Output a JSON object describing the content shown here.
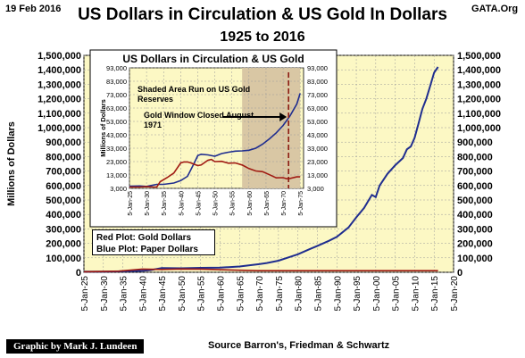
{
  "header": {
    "date": "19 Feb 2016",
    "site": "GATA.Org",
    "title": "US Dollars in Circulation & US Gold In Dollars",
    "subtitle": "1925 to 2016"
  },
  "footer": {
    "credit": "Graphic by Mark J. Lundeen",
    "source": "Source Barron's, Friedman  & Schwartz"
  },
  "legend": {
    "red": "Red Plot: Gold Dollars",
    "blue": "Blue Plot: Paper Dollars"
  },
  "colors": {
    "plot_bg": "#fcf8c4",
    "paper": "#1f2d8f",
    "gold": "#a01a12",
    "shade": "#d9c7a4"
  },
  "chart_data": [
    {
      "type": "line",
      "title": "US Dollars in Circulation & US Gold In Dollars",
      "subtitle": "1925 to 2016",
      "xlabel": "",
      "ylabel": "Millions of Dollars",
      "xlim": [
        1925,
        2020
      ],
      "ylim": [
        0,
        1500000
      ],
      "grid": true,
      "x_ticks": [
        "5-Jan-25",
        "5-Jan-30",
        "5-Jan-35",
        "5-Jan-40",
        "5-Jan-45",
        "5-Jan-50",
        "5-Jan-55",
        "5-Jan-60",
        "5-Jan-65",
        "5-Jan-70",
        "5-Jan-75",
        "5-Jan-80",
        "5-Jan-85",
        "5-Jan-90",
        "5-Jan-95",
        "5-Jan-00",
        "5-Jan-05",
        "5-Jan-10",
        "5-Jan-15",
        "5-Jan-20"
      ],
      "y_ticks": [
        "0",
        "100,000",
        "200,000",
        "300,000",
        "400,000",
        "500,000",
        "600,000",
        "700,000",
        "800,000",
        "900,000",
        "1,000,000",
        "1,100,000",
        "1,200,000",
        "1,300,000",
        "1,400,000",
        "1,500,000"
      ],
      "y_ticks_right": [
        "0",
        "100,000",
        "200,000",
        "300,000",
        "400,000",
        "500,000",
        "600,000",
        "700,000",
        "800,000",
        "900,000",
        "1,000,000",
        "1,100,000",
        "1,200,000",
        "1,300,000",
        "1,400,000",
        "1,500,000"
      ],
      "series": [
        {
          "name": "Blue Plot: Paper Dollars",
          "color": "#1f2d8f",
          "x": [
            1925,
            1930,
            1935,
            1940,
            1942,
            1945,
            1950,
            1955,
            1960,
            1965,
            1970,
            1972,
            1975,
            1978,
            1980,
            1983,
            1985,
            1988,
            1990,
            1993,
            1995,
            1997,
            1999,
            2000,
            2001,
            2003,
            2005,
            2007,
            2008,
            2009,
            2010,
            2011,
            2012,
            2013,
            2014,
            2015,
            2016
          ],
          "y": [
            5000,
            5000,
            7000,
            10000,
            15000,
            29000,
            28000,
            31000,
            32000,
            40000,
            56000,
            64000,
            80000,
            107000,
            125000,
            160000,
            183000,
            218000,
            245000,
            310000,
            380000,
            445000,
            535000,
            520000,
            600000,
            680000,
            740000,
            790000,
            850000,
            870000,
            930000,
            1030000,
            1130000,
            1200000,
            1290000,
            1380000,
            1420000
          ]
        },
        {
          "name": "Red Plot: Gold Dollars",
          "color": "#a01a12",
          "x": [
            1925,
            1934,
            1940,
            1945,
            1950,
            1955,
            1960,
            1965,
            1970,
            1975,
            1980,
            1990,
            2000,
            2010,
            2016
          ],
          "y": [
            4000,
            8000,
            22000,
            20000,
            23000,
            22000,
            18000,
            14000,
            11000,
            11000,
            11000,
            11000,
            11000,
            11000,
            11000
          ]
        }
      ]
    },
    {
      "type": "line",
      "title": "US Dollars in Circulation & US Gold",
      "xlabel": "",
      "ylabel": "Millions of Dollars",
      "xlim": [
        1925,
        1976
      ],
      "ylim": [
        3000,
        93000
      ],
      "grid": true,
      "annotations": [
        "Shaded Area Run on US Gold Reserves",
        "Gold Window Closed August 1971"
      ],
      "shaded_range": [
        1958,
        1975
      ],
      "marker_x": 1971.6,
      "x_ticks": [
        "5-Jan-25",
        "5-Jan-30",
        "5-Jan-35",
        "5-Jan-40",
        "5-Jan-45",
        "5-Jan-50",
        "5-Jan-55",
        "5-Jan-60",
        "5-Jan-65",
        "5-Jan-70",
        "5-Jan-75"
      ],
      "y_ticks": [
        "3,000",
        "13,000",
        "23,000",
        "33,000",
        "43,000",
        "53,000",
        "63,000",
        "73,000",
        "83,000",
        "93,000"
      ],
      "series": [
        {
          "name": "Paper Dollars",
          "color": "#1f2d8f",
          "x": [
            1925,
            1928,
            1930,
            1932,
            1933,
            1935,
            1938,
            1940,
            1942,
            1943,
            1944,
            1945,
            1946,
            1948,
            1950,
            1952,
            1954,
            1956,
            1958,
            1960,
            1962,
            1964,
            1966,
            1968,
            1970,
            1972,
            1974,
            1975
          ],
          "y": [
            4600,
            4800,
            4500,
            5500,
            6000,
            6000,
            7000,
            8800,
            12000,
            17000,
            22000,
            27500,
            28500,
            28000,
            27000,
            29000,
            30000,
            30800,
            31000,
            31500,
            33000,
            36000,
            40000,
            44500,
            50000,
            57000,
            66000,
            74000
          ]
        },
        {
          "name": "Gold Dollars",
          "color": "#a01a12",
          "x": [
            1925,
            1928,
            1930,
            1932,
            1933,
            1934,
            1936,
            1938,
            1940,
            1941,
            1942,
            1943,
            1944,
            1945,
            1946,
            1948,
            1949,
            1950,
            1952,
            1954,
            1956,
            1958,
            1960,
            1962,
            1964,
            1966,
            1968,
            1970,
            1971,
            1972,
            1974,
            1975
          ],
          "y": [
            4000,
            4000,
            4300,
            4000,
            4000,
            8000,
            11000,
            14500,
            22000,
            22700,
            22700,
            22000,
            21000,
            20000,
            20500,
            24000,
            24600,
            23000,
            23200,
            21800,
            22000,
            20500,
            17800,
            16000,
            15500,
            13200,
            10900,
            11000,
            10200,
            10400,
            11600,
            11600
          ]
        }
      ]
    }
  ]
}
